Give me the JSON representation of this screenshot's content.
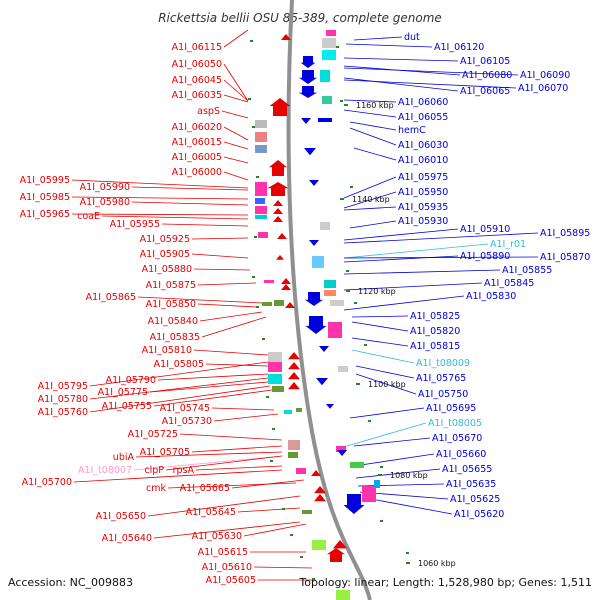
{
  "title": "Rickettsia bellii OSU 85-389, complete genome",
  "footer": {
    "accession": "Accession: NC_009883",
    "summary": "Topology: linear; Length: 1,528,980 bp; Genes: 1,511"
  },
  "colors": {
    "forward": "#e60000",
    "reverse": "#0000dd",
    "rna": "#33bbdd",
    "trna_pink": "#ff99cc",
    "axis": "#888888",
    "dots": "#228822"
  },
  "scale_labels": [
    "1160 kbp",
    "1140 kbp",
    "1120 kbp",
    "1100 kbp",
    "1080 kbp",
    "1060 kbp"
  ],
  "left_labels": [
    {
      "text": "A1I_06115",
      "color": "forward"
    },
    {
      "text": "A1I_06050",
      "color": "forward"
    },
    {
      "text": "A1I_06045",
      "color": "forward"
    },
    {
      "text": "A1I_06035",
      "color": "forward"
    },
    {
      "text": "aspS",
      "color": "forward"
    },
    {
      "text": "A1I_06020",
      "color": "forward"
    },
    {
      "text": "A1I_06015",
      "color": "forward"
    },
    {
      "text": "A1I_06005",
      "color": "forward"
    },
    {
      "text": "A1I_06000",
      "color": "forward"
    },
    {
      "text": "A1I_05995",
      "color": "forward"
    },
    {
      "text": "A1I_05990",
      "color": "forward"
    },
    {
      "text": "A1I_05985",
      "color": "forward"
    },
    {
      "text": "A1I_05980",
      "color": "forward"
    },
    {
      "text": "A1I_05965",
      "color": "forward"
    },
    {
      "text": "coaE",
      "color": "forward"
    },
    {
      "text": "A1I_05955",
      "color": "forward"
    },
    {
      "text": "A1I_05925",
      "color": "forward"
    },
    {
      "text": "A1I_05905",
      "color": "forward"
    },
    {
      "text": "A1I_05880",
      "color": "forward"
    },
    {
      "text": "A1I_05875",
      "color": "forward"
    },
    {
      "text": "A1I_05865",
      "color": "forward"
    },
    {
      "text": "A1I_05850",
      "color": "forward"
    },
    {
      "text": "A1I_05840",
      "color": "forward"
    },
    {
      "text": "A1I_05835",
      "color": "forward"
    },
    {
      "text": "A1I_05810",
      "color": "forward"
    },
    {
      "text": "A1I_05805",
      "color": "forward"
    },
    {
      "text": "A1I_05795",
      "color": "forward"
    },
    {
      "text": "A1I_05790",
      "color": "forward"
    },
    {
      "text": "A1I_05780",
      "color": "forward"
    },
    {
      "text": "A1I_05775",
      "color": "forward"
    },
    {
      "text": "A1I_05760",
      "color": "forward"
    },
    {
      "text": "A1I_05755",
      "color": "forward"
    },
    {
      "text": "A1I_05745",
      "color": "forward"
    },
    {
      "text": "A1I_05730",
      "color": "forward"
    },
    {
      "text": "A1I_05725",
      "color": "forward"
    },
    {
      "text": "A1I_05705",
      "color": "forward"
    },
    {
      "text": "ubiA",
      "color": "forward"
    },
    {
      "text": "A1I_t08007",
      "color": "trna_pink"
    },
    {
      "text": "clpP",
      "color": "forward"
    },
    {
      "text": "rpsA",
      "color": "forward"
    },
    {
      "text": "A1I_05700",
      "color": "forward"
    },
    {
      "text": "cmk",
      "color": "forward"
    },
    {
      "text": "A1I_05665",
      "color": "forward"
    },
    {
      "text": "A1I_05650",
      "color": "forward"
    },
    {
      "text": "A1I_05645",
      "color": "forward"
    },
    {
      "text": "A1I_05640",
      "color": "forward"
    },
    {
      "text": "A1I_05630",
      "color": "forward"
    },
    {
      "text": "A1I_05615",
      "color": "forward"
    },
    {
      "text": "A1I_05610",
      "color": "forward"
    },
    {
      "text": "A1I_05605",
      "color": "forward"
    }
  ],
  "right_labels": [
    {
      "text": "dut",
      "color": "reverse"
    },
    {
      "text": "A1I_06120",
      "color": "reverse"
    },
    {
      "text": "A1I_06105",
      "color": "reverse"
    },
    {
      "text": "A1I_06080",
      "color": "reverse"
    },
    {
      "text": "A1I_06090",
      "color": "reverse"
    },
    {
      "text": "A1I_06065",
      "color": "reverse"
    },
    {
      "text": "A1I_06070",
      "color": "reverse"
    },
    {
      "text": "A1I_06060",
      "color": "reverse"
    },
    {
      "text": "A1I_06055",
      "color": "reverse"
    },
    {
      "text": "hemC",
      "color": "reverse"
    },
    {
      "text": "A1I_06030",
      "color": "reverse"
    },
    {
      "text": "A1I_06010",
      "color": "reverse"
    },
    {
      "text": "A1I_05975",
      "color": "reverse"
    },
    {
      "text": "A1I_05950",
      "color": "reverse"
    },
    {
      "text": "A1I_05935",
      "color": "reverse"
    },
    {
      "text": "A1I_05930",
      "color": "reverse"
    },
    {
      "text": "A1I_05910",
      "color": "reverse"
    },
    {
      "text": "A1I_05895",
      "color": "reverse"
    },
    {
      "text": "A1I_r01",
      "color": "rna"
    },
    {
      "text": "A1I_05890",
      "color": "reverse"
    },
    {
      "text": "A1I_05870",
      "color": "reverse"
    },
    {
      "text": "A1I_05855",
      "color": "reverse"
    },
    {
      "text": "A1I_05845",
      "color": "reverse"
    },
    {
      "text": "A1I_05830",
      "color": "reverse"
    },
    {
      "text": "A1I_05825",
      "color": "reverse"
    },
    {
      "text": "A1I_05820",
      "color": "reverse"
    },
    {
      "text": "A1I_05815",
      "color": "reverse"
    },
    {
      "text": "A1I_t08009",
      "color": "rna"
    },
    {
      "text": "A1I_05765",
      "color": "reverse"
    },
    {
      "text": "A1I_05750",
      "color": "reverse"
    },
    {
      "text": "A1I_05695",
      "color": "reverse"
    },
    {
      "text": "A1I_t08005",
      "color": "rna"
    },
    {
      "text": "A1I_05670",
      "color": "reverse"
    },
    {
      "text": "A1I_05660",
      "color": "reverse"
    },
    {
      "text": "A1I_05655",
      "color": "reverse"
    },
    {
      "text": "A1I_05635",
      "color": "reverse"
    },
    {
      "text": "A1I_05625",
      "color": "reverse"
    },
    {
      "text": "A1I_05620",
      "color": "reverse"
    }
  ]
}
